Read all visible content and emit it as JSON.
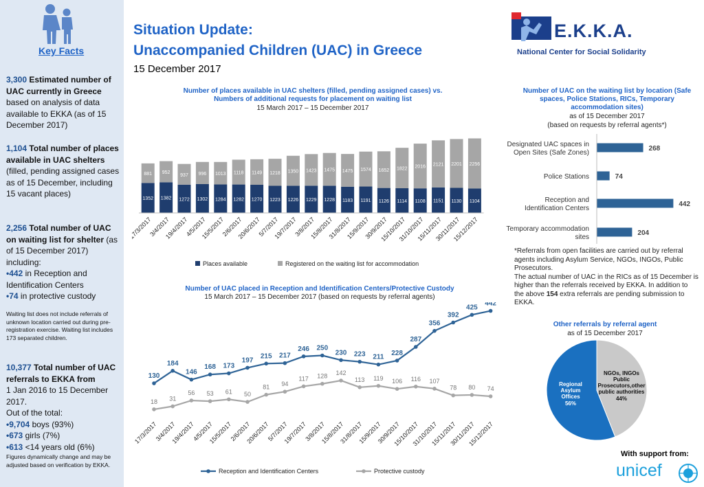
{
  "sidebar": {
    "key_facts": "Key Facts",
    "f1_num": "3,300",
    "f1_bold": "Estimated number of UAC currently in Greece",
    "f1_rest": "based on analysis of data available to EKKA (as of 15 December 2017)",
    "f2_num": "1,104",
    "f2_bold": "Total number of places available in UAC shelters",
    "f2_rest": "(filled, pending assigned cases as of 15 December, including 15 vacant places)",
    "f3_num": "2,256",
    "f3_bold": "Total number of UAC on waiting list for shelter",
    "f3_rest": "(as of 15 December 2017) including:",
    "f3_b1_num": "•442",
    "f3_b1": "in Reception and Identification Centers",
    "f3_b2_num": "•74",
    "f3_b2": "in protective custody",
    "f3_note": "Waiting list does not include referrals of unknown location carried out during pre-registration exercise. Waiting list includes 173 separated children.",
    "f4_num": "10,377",
    "f4_bold": "Total number of UAC referrals to EKKA from",
    "f4_rest": "1 Jan 2016 to 15 December 2017.",
    "f4_out": "Out of the total:",
    "f4_b1_num": "•9,704",
    "f4_b1": "boys (93%)",
    "f4_b2_num": "•673",
    "f4_b2": "girls (7%)",
    "f4_b3_num": "•613",
    "f4_b3": "<14 years old (6%)",
    "f4_note": "Figures dynamically change and may be adjusted based on verification by EKKA."
  },
  "header": {
    "title1": "Situation Update:",
    "title2": "Unaccompanied Children (UAC) in Greece",
    "date": "15 December 2017",
    "org": "E.K.K.A.",
    "org_full": "National Center for Social Solidarity"
  },
  "footer": {
    "support": "With support from:",
    "unicef": "unicef"
  },
  "note": {
    "p1": "*Referrals from open facilities are carried out by referral agents including Asylum Service, NGOs, INGOs, Public Prosecutors.",
    "p2a": "The actual number of UAC in the RICs as of 15 December is higher than the referrals received by EKKA. In addition to the above ",
    "p2b": "154",
    "p2c": " extra referrals are pending submission to EKKA."
  },
  "chart_data": [
    {
      "type": "bar",
      "stacked": true,
      "title": "Number of places available in UAC shelters (filled, pending assigned cases) vs. Numbers of additional requests for placement on waiting list",
      "subtitle": "15 March 2017 – 15 December 2017",
      "categories": [
        "17/3/2017",
        "3/4/2017",
        "19/4/2017",
        "4/5/2017",
        "15/5/2017",
        "2/6/2017",
        "20/6/2017",
        "5/7/2017",
        "19/7/2017",
        "3/8/2017",
        "15/8/2017",
        "31/8/2017",
        "15/9/2017",
        "30/9/2017",
        "15/10/2017",
        "31/10/2017",
        "15/11/2017",
        "30/11/2017",
        "15/12/2017"
      ],
      "series": [
        {
          "name": "Places available",
          "color": "#1f3d6e",
          "values": [
            1352,
            1382,
            1272,
            1302,
            1284,
            1282,
            1270,
            1223,
            1226,
            1229,
            1228,
            1183,
            1191,
            1126,
            1114,
            1108,
            1151,
            1130,
            1104
          ]
        },
        {
          "name": "Registered on the waiting list for accommodation",
          "color": "#a6a6a6",
          "values": [
            881,
            952,
            937,
            996,
            1013,
            1118,
            1149,
            1218,
            1350,
            1423,
            1475,
            1475,
            1574,
            1652,
            1822,
            2016,
            2121,
            2201,
            2256
          ]
        }
      ]
    },
    {
      "type": "bar",
      "orientation": "horizontal",
      "title": "Number of UAC on the waiting list by location (Safe spaces, Police Stations, RICs, Temporary accommodation sites)",
      "subtitle1": "as of 15 December 2017",
      "subtitle2": "(based on requests by referral agents*)",
      "categories": [
        "Designated UAC spaces in Open Sites (Safe Zones)",
        "Police Stations",
        "Reception and Identification Centers",
        "Temporary accommodation sites"
      ],
      "values": [
        268,
        74,
        442,
        204
      ],
      "color": "#2e6396"
    },
    {
      "type": "line",
      "title": "Number of UAC placed in Reception and Identification Centers/Protective Custody",
      "subtitle": "15 March 2017 – 15 December 2017 (based on requests by referral agents)",
      "categories": [
        "17/3/2017",
        "3/4/2017",
        "19/4/2017",
        "4/5/2017",
        "15/5/2017",
        "2/6/2017",
        "20/6/2017",
        "5/7/2017",
        "19/7/2017",
        "3/8/2017",
        "15/8/2017",
        "31/8/2017",
        "15/9/2017",
        "30/9/2017",
        "15/10/2017",
        "31/10/2017",
        "15/11/2017",
        "30/11/2017",
        "15/12/2017"
      ],
      "series": [
        {
          "name": "Reception and Identification Centers",
          "color": "#2e6396",
          "values": [
            130,
            184,
            146,
            168,
            173,
            197,
            215,
            217,
            246,
            250,
            230,
            223,
            211,
            228,
            287,
            356,
            392,
            425,
            442
          ]
        },
        {
          "name": "Protective custody",
          "color": "#a6a6a6",
          "values": [
            18,
            31,
            56,
            53,
            61,
            50,
            81,
            94,
            117,
            128,
            142,
            113,
            119,
            106,
            116,
            107,
            78,
            80,
            74
          ]
        }
      ]
    },
    {
      "type": "pie",
      "title": "Other referrals by referral agent",
      "subtitle": "as of 15 December 2017",
      "slices": [
        {
          "label": "Regional Asylum Offices",
          "pct_label": "56%",
          "value": 56,
          "color": "#1a70c0"
        },
        {
          "label": "NGOs, INGOs Public Prosecutors,other public authorities",
          "pct_label": "44%",
          "value": 44,
          "color": "#c9c9c9"
        }
      ]
    }
  ]
}
